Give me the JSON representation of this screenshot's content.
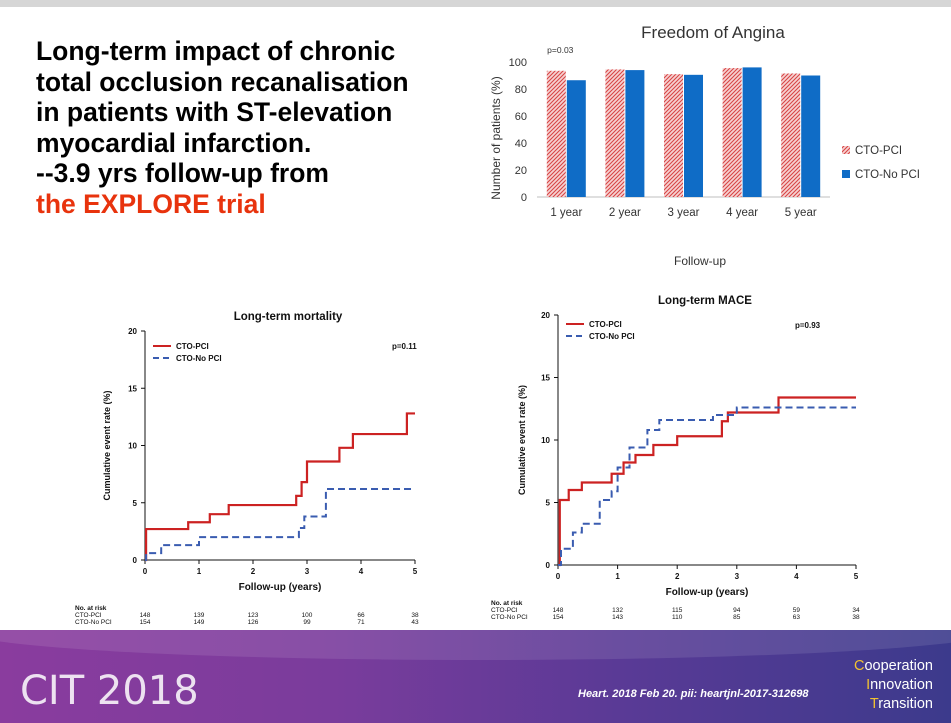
{
  "title": {
    "lines": [
      "Long-term impact of chronic",
      "total occlusion recanalisation",
      "in patients with ST-elevation",
      "myocardial infarction.",
      "--3.9 yrs follow-up from"
    ],
    "highlight": "the EXPLORE trial",
    "highlight_color": "#e8330d"
  },
  "footer": {
    "logo": "CIT 2018",
    "citation": "Heart. 2018 Feb 20. pii: heartjnl-2017-312698",
    "tagline": [
      {
        "cap": "C",
        "rest": "ooperation"
      },
      {
        "cap": "I",
        "rest": "nnovation"
      },
      {
        "cap": "T",
        "rest": "ransition"
      }
    ]
  },
  "chart_data": [
    {
      "type": "bar",
      "title": "Freedom of Angina",
      "xlabel": "Follow-up",
      "ylabel": "Number of patients (%)",
      "ylim": [
        0,
        100
      ],
      "yticks": [
        0,
        20,
        40,
        60,
        80,
        100
      ],
      "categories": [
        "1 year",
        "2 year",
        "3 year",
        "4 year",
        "5 year"
      ],
      "series": [
        {
          "name": "CTO-PCI",
          "values": [
            93.5,
            94.5,
            91,
            95.5,
            91.5
          ],
          "color": "#e26a6a",
          "pattern": "hatched"
        },
        {
          "name": "CTO-No PCI",
          "values": [
            86.5,
            94,
            90.5,
            96,
            90
          ],
          "color": "#0f6cc6"
        }
      ],
      "annotations": [
        {
          "text": "p=0.03",
          "category": "1 year"
        }
      ],
      "legend": "right",
      "grid": false
    },
    {
      "type": "line",
      "step": true,
      "title": "Long-term mortality",
      "xlabel": "Follow-up (years)",
      "ylabel": "Cumulative event rate (%)",
      "xlim": [
        0,
        5
      ],
      "ylim": [
        0,
        20
      ],
      "xticks": [
        0,
        1,
        2,
        3,
        4,
        5
      ],
      "yticks": [
        0,
        5,
        10,
        15,
        20
      ],
      "pvalue": "p=0.11",
      "legend": "top-left",
      "series": [
        {
          "name": "CTO-PCI",
          "color": "#cc2222",
          "dash": false,
          "x": [
            0,
            0.02,
            0.18,
            0.8,
            1.2,
            1.55,
            2.8,
            2.9,
            3.0,
            3.6,
            3.85,
            4.85,
            5.0
          ],
          "y": [
            0,
            2.7,
            2.7,
            3.3,
            4.0,
            4.8,
            5.6,
            6.8,
            8.6,
            9.8,
            11.0,
            12.8,
            12.8
          ]
        },
        {
          "name": "CTO-No PCI",
          "color": "#3a5cb0",
          "dash": true,
          "x": [
            0,
            0.02,
            0.3,
            1.0,
            2.85,
            2.95,
            3.2,
            3.35,
            5.0
          ],
          "y": [
            0,
            0.6,
            1.3,
            2.0,
            2.8,
            3.8,
            3.8,
            6.2,
            6.2
          ]
        }
      ],
      "at_risk": {
        "label": "No. at risk",
        "rows": [
          {
            "name": "CTO-PCI",
            "values": [
              "148",
              "139",
              "123",
              "100",
              "66",
              "38"
            ]
          },
          {
            "name": "CTO-No PCI",
            "values": [
              "154",
              "149",
              "126",
              "99",
              "71",
              "43"
            ]
          }
        ]
      }
    },
    {
      "type": "line",
      "step": true,
      "title": "Long-term MACE",
      "xlabel": "Follow-up (years)",
      "ylabel": "Cumulative event rate (%)",
      "xlim": [
        0,
        5
      ],
      "ylim": [
        0,
        20
      ],
      "xticks": [
        0,
        1,
        2,
        3,
        4,
        5
      ],
      "yticks": [
        0,
        5,
        10,
        15,
        20
      ],
      "pvalue": "p=0.93",
      "legend": "top-left",
      "series": [
        {
          "name": "CTO-PCI",
          "color": "#cc2222",
          "dash": false,
          "x": [
            0,
            0.03,
            0.18,
            0.4,
            0.9,
            1.1,
            1.3,
            1.6,
            2.0,
            2.75,
            2.85,
            3.7,
            5.0
          ],
          "y": [
            0,
            5.2,
            6.0,
            6.6,
            7.3,
            8.2,
            8.8,
            9.6,
            10.3,
            11.5,
            12.2,
            13.4,
            13.4
          ]
        },
        {
          "name": "CTO-No PCI",
          "color": "#3a5cb0",
          "dash": true,
          "x": [
            0,
            0.05,
            0.25,
            0.4,
            0.7,
            0.9,
            1.0,
            1.2,
            1.5,
            1.7,
            2.6,
            3.0,
            5.0
          ],
          "y": [
            0,
            1.3,
            2.6,
            3.3,
            5.2,
            5.9,
            7.8,
            9.4,
            10.8,
            11.6,
            12.0,
            12.6,
            12.6
          ]
        }
      ],
      "at_risk": {
        "label": "No. at risk",
        "rows": [
          {
            "name": "CTO-PCI",
            "values": [
              "148",
              "132",
              "115",
              "94",
              "59",
              "34"
            ]
          },
          {
            "name": "CTO-No PCI",
            "values": [
              "154",
              "143",
              "110",
              "85",
              "63",
              "38"
            ]
          }
        ]
      }
    }
  ]
}
